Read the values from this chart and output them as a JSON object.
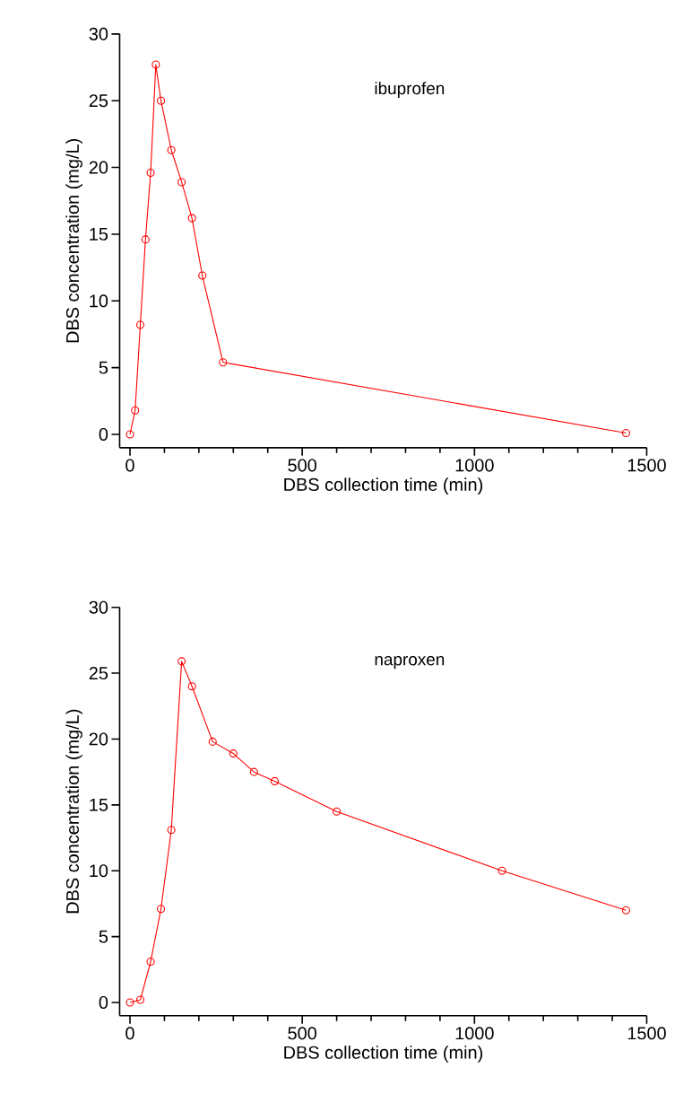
{
  "chart_data": [
    {
      "type": "line",
      "x": [
        0,
        15,
        30,
        45,
        60,
        75,
        90,
        120,
        150,
        180,
        210,
        270,
        1440
      ],
      "series": [
        {
          "color": "#ff0000",
          "values": [
            0,
            1.8,
            8.2,
            14.6,
            19.6,
            27.7,
            25.0,
            21.3,
            18.9,
            16.2,
            11.9,
            5.4,
            0.1
          ]
        }
      ],
      "marker": "circle",
      "xlim": [
        -30,
        1500
      ],
      "ylim": [
        -1,
        30
      ],
      "xticks": [
        0,
        500,
        1000,
        1500
      ],
      "yticks": [
        0,
        5,
        10,
        15,
        20,
        25,
        30
      ],
      "xlabel": "DBS collection time (min)",
      "ylabel": "DBS concentration (mg/L)",
      "annotations": [
        "ibuprofen"
      ]
    },
    {
      "type": "line",
      "x": [
        0,
        30,
        60,
        90,
        120,
        150,
        180,
        240,
        300,
        360,
        420,
        600,
        1080,
        1440
      ],
      "series": [
        {
          "color": "#ff0000",
          "values": [
            0,
            0.2,
            3.1,
            7.1,
            13.1,
            25.9,
            24.0,
            19.8,
            18.9,
            17.5,
            16.8,
            14.5,
            10.0,
            7.0
          ]
        }
      ],
      "marker": "circle",
      "xlim": [
        -30,
        1500
      ],
      "ylim": [
        -1,
        30
      ],
      "xticks": [
        0,
        500,
        1000,
        1500
      ],
      "yticks": [
        0,
        5,
        10,
        15,
        20,
        25,
        30
      ],
      "xlabel": "DBS collection time (min)",
      "ylabel": "DBS concentration (mg/L)",
      "annotations": [
        "naproxen"
      ]
    }
  ]
}
